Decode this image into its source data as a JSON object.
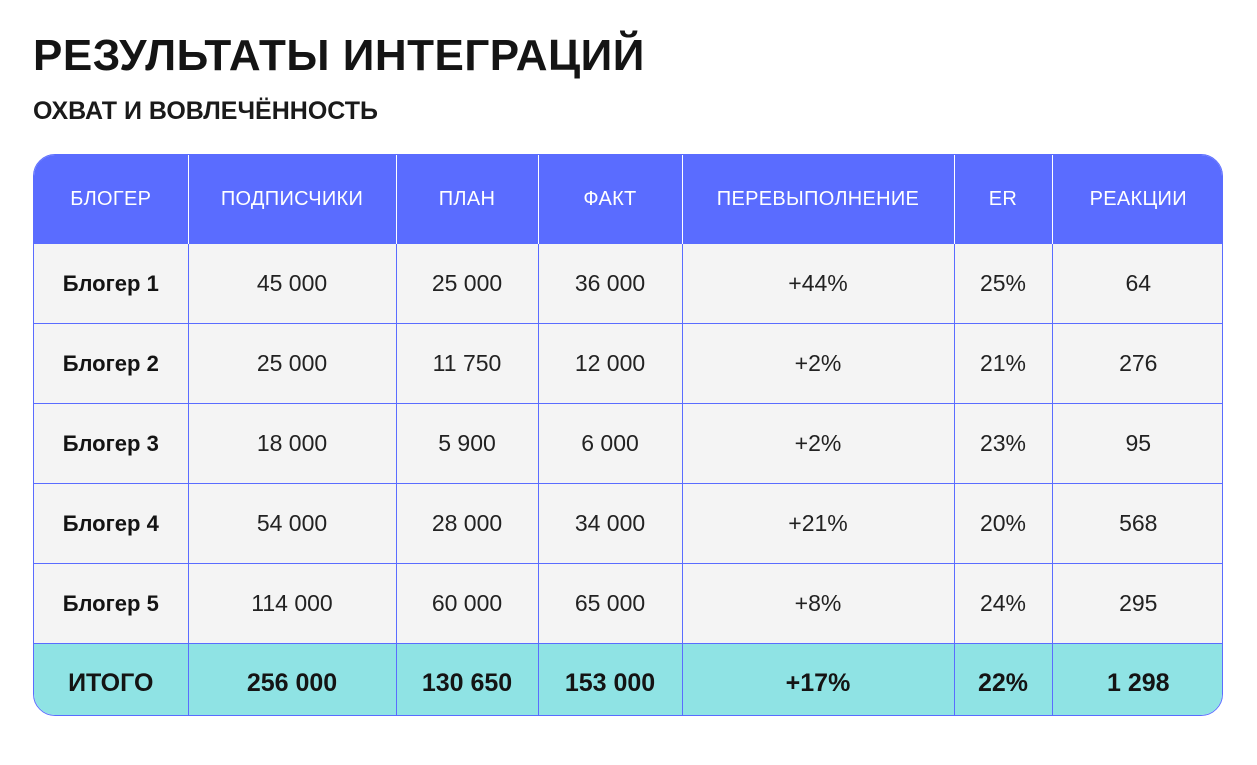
{
  "title": "РЕЗУЛЬТАТЫ ИНТЕГРАЦИЙ",
  "subtitle": "ОХВАТ И ВОВЛЕЧЁННОСТЬ",
  "colors": {
    "header_bg": "#5a6cff",
    "row_bg": "#f4f4f4",
    "total_bg": "#8fe3e4",
    "grid": "#5a6cff"
  },
  "table": {
    "headers": [
      "БЛОГЕР",
      "ПОДПИСЧИКИ",
      "ПЛАН",
      "ФАКТ",
      "ПЕРЕВЫПОЛНЕНИЕ",
      "ER",
      "РЕАКЦИИ"
    ],
    "rows": [
      [
        "Блогер 1",
        "45 000",
        "25 000",
        "36 000",
        "+44%",
        "25%",
        "64"
      ],
      [
        "Блогер 2",
        "25 000",
        "11 750",
        "12 000",
        "+2%",
        "21%",
        "276"
      ],
      [
        "Блогер 3",
        "18 000",
        "5 900",
        "6 000",
        "+2%",
        "23%",
        "95"
      ],
      [
        "Блогер 4",
        "54 000",
        "28 000",
        "34 000",
        "+21%",
        "20%",
        "568"
      ],
      [
        "Блогер 5",
        "114 000",
        "60 000",
        "65 000",
        "+8%",
        "24%",
        "295"
      ]
    ],
    "total": [
      "ИТОГО",
      "256 000",
      "130 650",
      "153 000",
      "+17%",
      "22%",
      "1 298"
    ]
  }
}
